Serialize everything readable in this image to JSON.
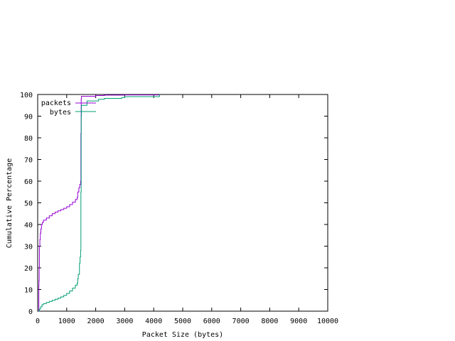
{
  "chart_data": {
    "type": "line",
    "title": "",
    "xlabel": "Packet Size (bytes)",
    "ylabel": "Cumulative Percentage",
    "xlim": [
      0,
      10000
    ],
    "ylim": [
      0,
      100
    ],
    "xticks": [
      0,
      1000,
      2000,
      3000,
      4000,
      5000,
      6000,
      7000,
      8000,
      9000,
      10000
    ],
    "yticks": [
      0,
      10,
      20,
      30,
      40,
      50,
      60,
      70,
      80,
      90,
      100
    ],
    "grid": false,
    "legend_position": "top-left",
    "series": [
      {
        "name": "packets",
        "color": "#9400d3",
        "points": [
          [
            40,
            0
          ],
          [
            40,
            12
          ],
          [
            44,
            14
          ],
          [
            52,
            20
          ],
          [
            60,
            30
          ],
          [
            75,
            33
          ],
          [
            90,
            36
          ],
          [
            110,
            38
          ],
          [
            130,
            40
          ],
          [
            160,
            41
          ],
          [
            200,
            42
          ],
          [
            300,
            43
          ],
          [
            400,
            44
          ],
          [
            500,
            45
          ],
          [
            600,
            45.7
          ],
          [
            700,
            46.3
          ],
          [
            800,
            46.9
          ],
          [
            900,
            47.5
          ],
          [
            1000,
            48.2
          ],
          [
            1100,
            49.2
          ],
          [
            1200,
            50.3
          ],
          [
            1300,
            51.5
          ],
          [
            1360,
            52.5
          ],
          [
            1380,
            55
          ],
          [
            1420,
            57
          ],
          [
            1450,
            58.5
          ],
          [
            1480,
            60
          ],
          [
            1490,
            82
          ],
          [
            1500,
            91
          ],
          [
            1500,
            98
          ],
          [
            1510,
            99.2
          ],
          [
            2000,
            99.5
          ],
          [
            2300,
            99.7
          ],
          [
            3000,
            99.8
          ],
          [
            4200,
            100
          ]
        ]
      },
      {
        "name": "bytes",
        "color": "#009e73",
        "points": [
          [
            40,
            0
          ],
          [
            60,
            1
          ],
          [
            100,
            2
          ],
          [
            150,
            3
          ],
          [
            200,
            3.5
          ],
          [
            300,
            4
          ],
          [
            400,
            4.5
          ],
          [
            500,
            5
          ],
          [
            600,
            5.5
          ],
          [
            700,
            6
          ],
          [
            800,
            6.6
          ],
          [
            900,
            7.3
          ],
          [
            1000,
            8.2
          ],
          [
            1100,
            9.3
          ],
          [
            1200,
            10.6
          ],
          [
            1300,
            12
          ],
          [
            1360,
            13
          ],
          [
            1380,
            15
          ],
          [
            1400,
            17
          ],
          [
            1440,
            22
          ],
          [
            1460,
            25
          ],
          [
            1480,
            28
          ],
          [
            1490,
            55
          ],
          [
            1500,
            85
          ],
          [
            1500,
            90
          ],
          [
            1510,
            95
          ],
          [
            1700,
            97
          ],
          [
            2100,
            97.8
          ],
          [
            2300,
            98.2
          ],
          [
            2900,
            98.6
          ],
          [
            3000,
            99
          ],
          [
            4200,
            99.5
          ],
          [
            4200,
            100
          ]
        ]
      }
    ]
  }
}
